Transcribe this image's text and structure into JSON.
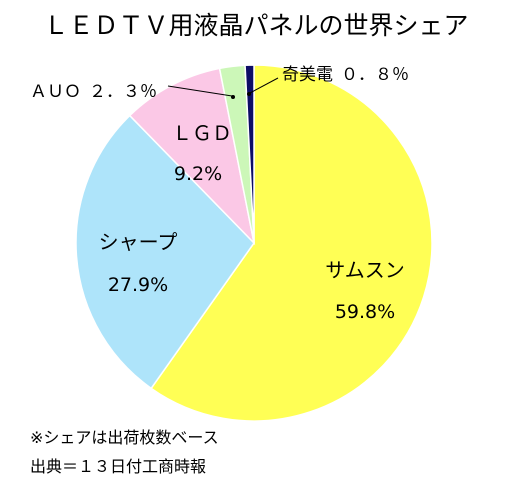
{
  "chart_data": {
    "type": "pie",
    "title": "ＬＥＤＴＶ用液晶パネルの世界シェア",
    "slices": [
      {
        "name": "サムスン",
        "value": 59.8,
        "value_label": "59.8%",
        "color": "#ffff55"
      },
      {
        "name": "シャープ",
        "value": 27.9,
        "value_label": "27.9%",
        "color": "#aee4fa"
      },
      {
        "name": "ＬＧＤ",
        "value": 9.2,
        "value_label": "9.2%",
        "color": "#fbc8e6"
      },
      {
        "name": "ＡＵＯ",
        "value": 2.3,
        "value_label": "２．３％",
        "color": "#ccf7b8"
      },
      {
        "name": "奇美電",
        "value": 0.8,
        "value_label": "０．８％",
        "color": "#0d0d66"
      }
    ],
    "start_angle_deg": 0,
    "direction": "clockwise",
    "notes": [
      "※シェアは出荷枚数ベース",
      "出典＝１３日付工商時報"
    ]
  }
}
